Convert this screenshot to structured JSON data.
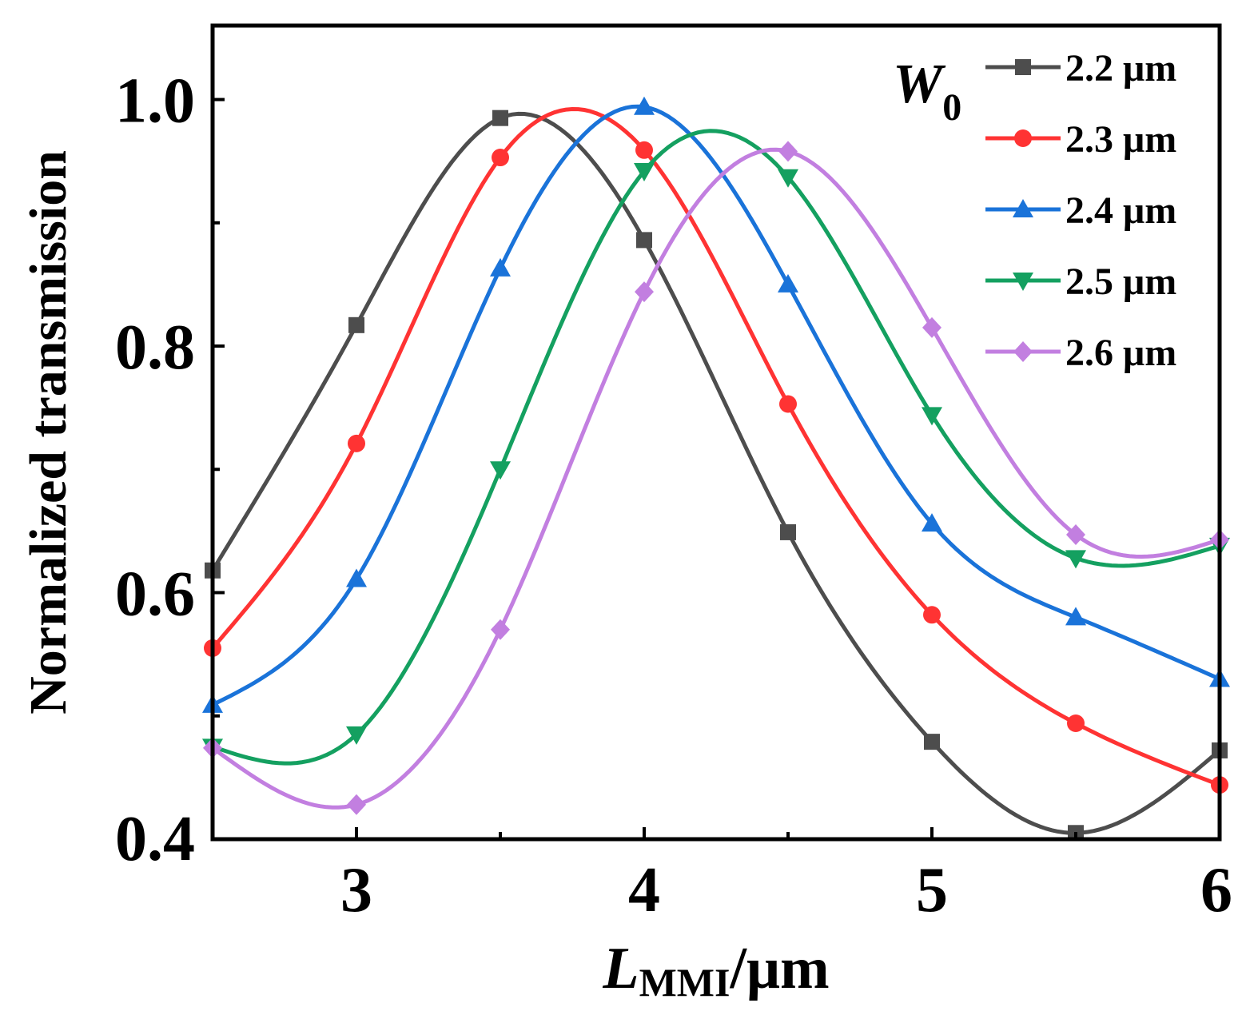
{
  "chart_data": {
    "type": "line",
    "xlabel": {
      "main": "L",
      "subscript": "MMI",
      "unit": "/μm"
    },
    "ylabel": "Normalized transmission",
    "xlim": [
      2.5,
      6.0
    ],
    "ylim": [
      0.4,
      1.06
    ],
    "xticks": [
      {
        "value": 3,
        "label": "3"
      },
      {
        "value": 4,
        "label": "4"
      },
      {
        "value": 5,
        "label": "5"
      },
      {
        "value": 6,
        "label": "6"
      }
    ],
    "yticks": [
      {
        "value": 0.4,
        "label": "0.4"
      },
      {
        "value": 0.6,
        "label": "0.6"
      },
      {
        "value": 0.8,
        "label": "0.8"
      },
      {
        "value": 1.0,
        "label": "1.0"
      }
    ],
    "x_minor_ticks": [
      3.5,
      4.5,
      5.5
    ],
    "y_minor_ticks": [
      0.5,
      0.7,
      0.9
    ],
    "legend": {
      "title_main": "W",
      "title_sub": "0",
      "position": "top-right"
    },
    "x": [
      2.5,
      3.0,
      3.5,
      4.0,
      4.5,
      5.0,
      5.5,
      6.0
    ],
    "series": [
      {
        "name": "2.2 μm",
        "color": "#4d4d4d",
        "marker": "square",
        "values": [
          0.618,
          0.817,
          0.985,
          0.886,
          0.649,
          0.479,
          0.405,
          0.472
        ]
      },
      {
        "name": "2.3 μm",
        "color": "#ff3333",
        "marker": "circle",
        "values": [
          0.555,
          0.721,
          0.953,
          0.959,
          0.753,
          0.582,
          0.494,
          0.444
        ]
      },
      {
        "name": "2.4 μm",
        "color": "#1a73d9",
        "marker": "triangle-up",
        "values": [
          0.509,
          0.611,
          0.863,
          0.994,
          0.85,
          0.656,
          0.58,
          0.53
        ]
      },
      {
        "name": "2.5 μm",
        "color": "#14a060",
        "marker": "triangle-down",
        "values": [
          0.475,
          0.485,
          0.7,
          0.942,
          0.937,
          0.744,
          0.628,
          0.638
        ]
      },
      {
        "name": "2.6 μm",
        "color": "#c27fe0",
        "marker": "diamond",
        "values": [
          0.474,
          0.428,
          0.57,
          0.844,
          0.958,
          0.815,
          0.647,
          0.643
        ]
      }
    ]
  }
}
